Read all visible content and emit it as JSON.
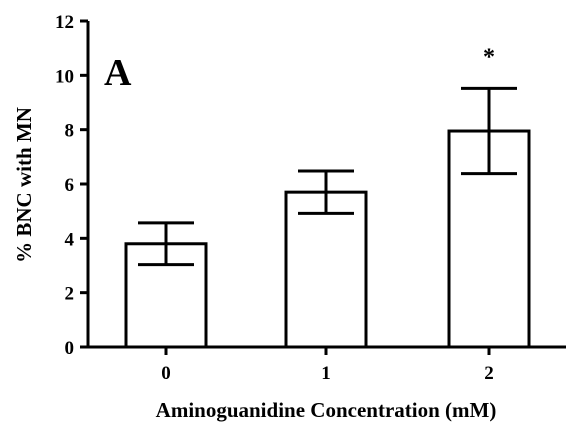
{
  "chart_data": {
    "type": "bar",
    "panel_label": "A",
    "categories": [
      "0",
      "1",
      "2"
    ],
    "values": [
      3.8,
      5.7,
      7.95
    ],
    "error": [
      0.77,
      0.78,
      1.57
    ],
    "significance": [
      "",
      "",
      "*"
    ],
    "xlabel": "Aminoguanidine Concentration (mM)",
    "ylabel": "% BNC with MN",
    "ylim": [
      0,
      12
    ],
    "yticks": [
      0,
      2,
      4,
      6,
      8,
      10,
      12
    ],
    "grid": false,
    "legend": "none"
  }
}
